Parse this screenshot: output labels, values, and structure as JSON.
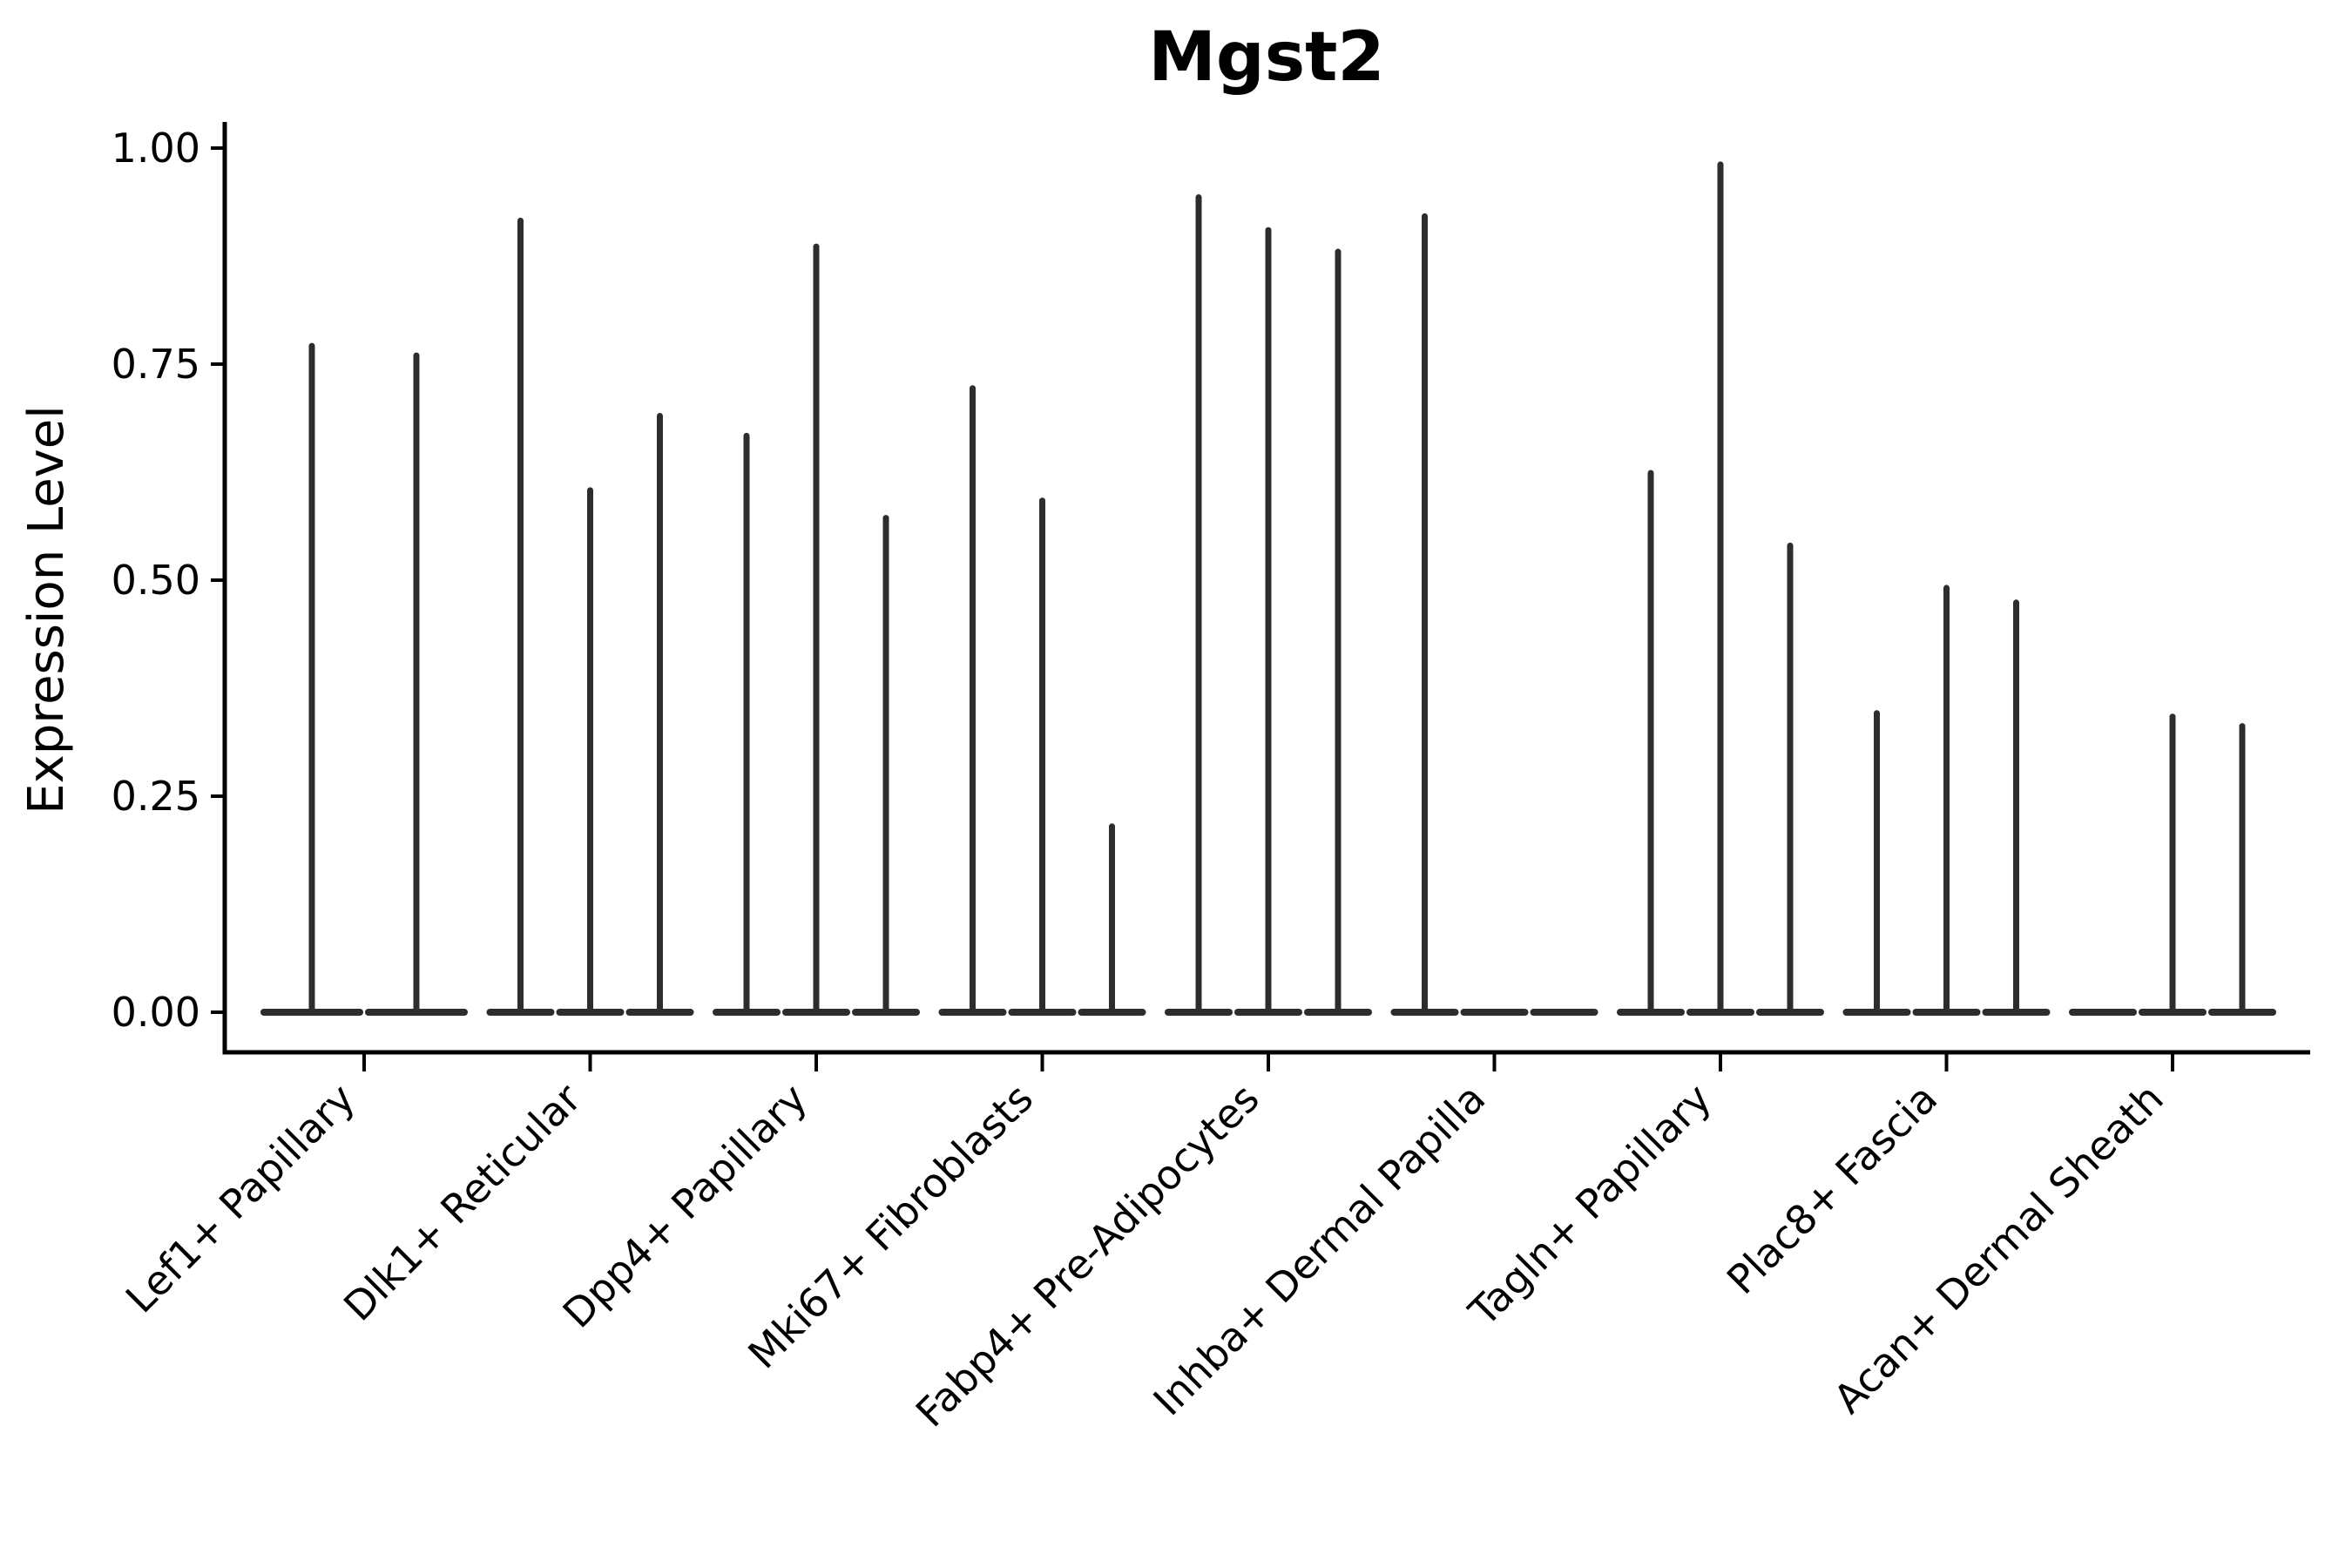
{
  "chart_data": {
    "type": "violin",
    "title": "Mgst2",
    "xlabel": "",
    "ylabel": "Expression Level",
    "ylim": [
      0,
      1.0
    ],
    "grid": false,
    "legend": null,
    "x_tick_rotation": 45,
    "yticks": [
      {
        "value": 0.0,
        "label": "0.00"
      },
      {
        "value": 0.25,
        "label": "0.25"
      },
      {
        "value": 0.5,
        "label": "0.50"
      },
      {
        "value": 0.75,
        "label": "0.75"
      },
      {
        "value": 1.0,
        "label": "1.00"
      }
    ],
    "categories": [
      "Lef1+ Papillary",
      "Dlk1+ Reticular",
      "Dpp4+ Papillary",
      "Mki67+ Fibroblasts",
      "Fabp4+ Pre-Adipocytes",
      "Inhba+ Dermal Papilla",
      "Tagln+ Papillary",
      "Plac8+ Fascia",
      "Acan+ Dermal Sheath"
    ],
    "groups": [
      {
        "label": "Lef1+ Papillary",
        "violin_max": [
          0.771,
          0.76
        ]
      },
      {
        "label": "Dlk1+ Reticular",
        "violin_max": [
          0.916,
          0.604,
          0.69
        ]
      },
      {
        "label": "Dpp4+ Papillary",
        "violin_max": [
          0.667,
          0.886,
          0.572
        ]
      },
      {
        "label": "Mki67+ Fibroblasts",
        "violin_max": [
          0.722,
          0.592,
          0.215
        ]
      },
      {
        "label": "Fabp4+ Pre-Adipocytes",
        "violin_max": [
          0.943,
          0.905,
          0.88
        ]
      },
      {
        "label": "Inhba+ Dermal Papilla",
        "violin_max": [
          0.921,
          0,
          0
        ]
      },
      {
        "label": "Tagln+ Papillary",
        "violin_max": [
          0.624,
          0.981,
          0.54
        ]
      },
      {
        "label": "Plac8+ Fascia",
        "violin_max": [
          0.346,
          0.491,
          0.474
        ]
      },
      {
        "label": "Acan+ Dermal Sheath",
        "violin_max": [
          0,
          0.342,
          0.331
        ]
      }
    ],
    "colors": {
      "violin_line": "#2d2d2d",
      "axis": "#000000",
      "text": "#000000",
      "background": "#ffffff"
    }
  }
}
